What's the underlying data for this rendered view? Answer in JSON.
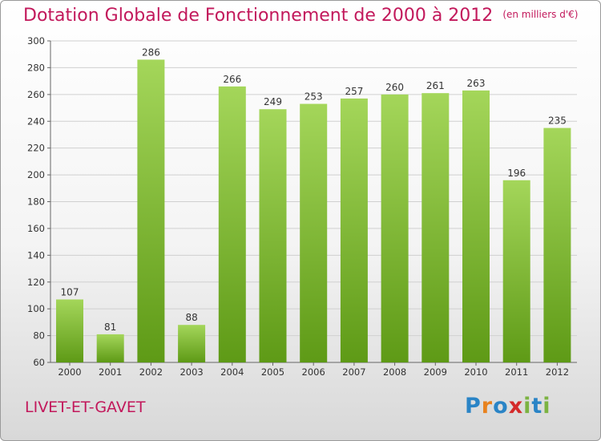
{
  "title": "Dotation Globale de Fonctionnement de 2000 à 2012",
  "unit_note": "(en milliers d'€)",
  "city": "LIVET-ET-GAVET",
  "logo": {
    "letters": [
      "P",
      "r",
      "o",
      "x",
      "i",
      "t",
      "i"
    ],
    "colors": [
      "#2a84c6",
      "#e8821e",
      "#2a84c6",
      "#d42a2a",
      "#7cb342",
      "#2a84c6",
      "#7cb342"
    ]
  },
  "colors": {
    "bar_light": "#a4d65a",
    "bar_dark": "#5e9a16",
    "accent": "#c2185b"
  },
  "chart_data": {
    "type": "bar",
    "categories": [
      "2000",
      "2001",
      "2002",
      "2003",
      "2004",
      "2005",
      "2006",
      "2007",
      "2008",
      "2009",
      "2010",
      "2011",
      "2012"
    ],
    "values": [
      107,
      81,
      286,
      88,
      266,
      249,
      253,
      257,
      260,
      261,
      263,
      196,
      235
    ],
    "ylim": [
      60,
      300
    ],
    "yticks": [
      60,
      80,
      100,
      120,
      140,
      160,
      180,
      200,
      220,
      240,
      260,
      280,
      300
    ],
    "grid": true,
    "xlabel": "",
    "ylabel": ""
  }
}
